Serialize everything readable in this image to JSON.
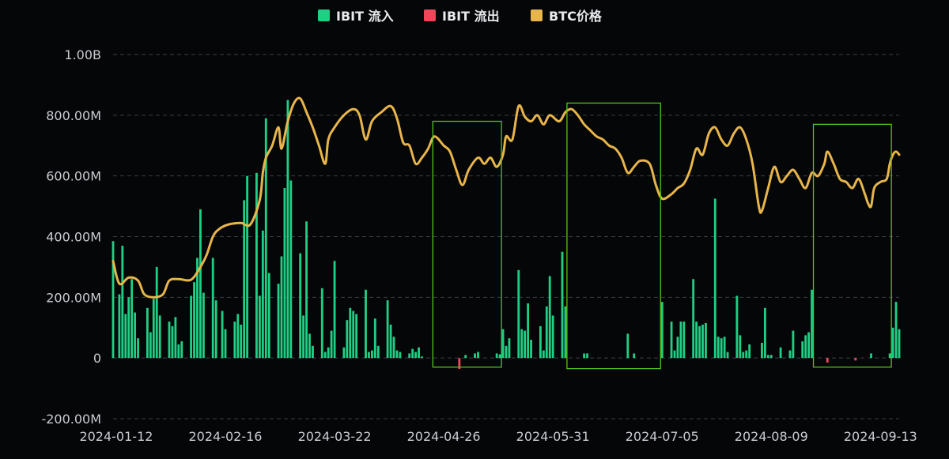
{
  "legend": {
    "inflow": "IBIT 流入",
    "outflow": "IBIT 流出",
    "price": "BTC价格"
  },
  "colors": {
    "inflow": "#1fcf84",
    "outflow": "#f0465a",
    "price": "#e8b54a",
    "highlight": "#52c41a",
    "grid": "#3a3f46",
    "text": "#c9ccd1",
    "background": "#040608"
  },
  "chart_data": {
    "type": "bar",
    "series_types": {
      "inflow": "bar",
      "outflow": "bar",
      "price": "line"
    },
    "ylim": [
      -200000000,
      1000000000
    ],
    "yticks": [
      {
        "value": 1000000000,
        "label": "1.00B"
      },
      {
        "value": 800000000,
        "label": "800.00M"
      },
      {
        "value": 600000000,
        "label": "600.00M"
      },
      {
        "value": 400000000,
        "label": "400.00M"
      },
      {
        "value": 200000000,
        "label": "200.00M"
      },
      {
        "value": 0,
        "label": "0"
      },
      {
        "value": -200000000,
        "label": "-200.00M"
      }
    ],
    "xlim": [
      "2024-01-11",
      "2024-09-19"
    ],
    "xticks": [
      "2024-01-12",
      "2024-02-16",
      "2024-03-22",
      "2024-04-26",
      "2024-05-31",
      "2024-07-05",
      "2024-08-09",
      "2024-09-13"
    ],
    "grid": true,
    "legend_position": "top-center",
    "flows": [
      [
        "2024-01-11",
        385000000
      ],
      [
        "2024-01-12",
        0
      ],
      [
        "2024-01-13",
        210000000
      ],
      [
        "2024-01-14",
        370000000
      ],
      [
        "2024-01-15",
        145000000
      ],
      [
        "2024-01-16",
        200000000
      ],
      [
        "2024-01-17",
        260000000
      ],
      [
        "2024-01-18",
        150000000
      ],
      [
        "2024-01-19",
        65000000
      ],
      [
        "2024-01-22",
        165000000
      ],
      [
        "2024-01-23",
        85000000
      ],
      [
        "2024-01-24",
        195000000
      ],
      [
        "2024-01-25",
        300000000
      ],
      [
        "2024-01-26",
        140000000
      ],
      [
        "2024-01-29",
        120000000
      ],
      [
        "2024-01-30",
        105000000
      ],
      [
        "2024-01-31",
        135000000
      ],
      [
        "2024-02-01",
        45000000
      ],
      [
        "2024-02-02",
        55000000
      ],
      [
        "2024-02-05",
        205000000
      ],
      [
        "2024-02-06",
        250000000
      ],
      [
        "2024-02-07",
        330000000
      ],
      [
        "2024-02-08",
        490000000
      ],
      [
        "2024-02-09",
        215000000
      ],
      [
        "2024-02-12",
        330000000
      ],
      [
        "2024-02-13",
        190000000
      ],
      [
        "2024-02-14",
        0
      ],
      [
        "2024-02-15",
        155000000
      ],
      [
        "2024-02-16",
        95000000
      ],
      [
        "2024-02-19",
        120000000
      ],
      [
        "2024-02-20",
        145000000
      ],
      [
        "2024-02-21",
        110000000
      ],
      [
        "2024-02-22",
        520000000
      ],
      [
        "2024-02-23",
        600000000
      ],
      [
        "2024-02-26",
        610000000
      ],
      [
        "2024-02-27",
        205000000
      ],
      [
        "2024-02-28",
        420000000
      ],
      [
        "2024-02-29",
        790000000
      ],
      [
        "2024-03-01",
        280000000
      ],
      [
        "2024-03-04",
        245000000
      ],
      [
        "2024-03-05",
        335000000
      ],
      [
        "2024-03-06",
        560000000
      ],
      [
        "2024-03-07",
        850000000
      ],
      [
        "2024-03-08",
        585000000
      ],
      [
        "2024-03-11",
        345000000
      ],
      [
        "2024-03-12",
        140000000
      ],
      [
        "2024-03-13",
        450000000
      ],
      [
        "2024-03-14",
        80000000
      ],
      [
        "2024-03-15",
        40000000
      ],
      [
        "2024-03-18",
        230000000
      ],
      [
        "2024-03-19",
        20000000
      ],
      [
        "2024-03-20",
        35000000
      ],
      [
        "2024-03-21",
        90000000
      ],
      [
        "2024-03-22",
        320000000
      ],
      [
        "2024-03-25",
        35000000
      ],
      [
        "2024-03-26",
        125000000
      ],
      [
        "2024-03-27",
        165000000
      ],
      [
        "2024-03-28",
        155000000
      ],
      [
        "2024-03-29",
        145000000
      ],
      [
        "2024-04-01",
        225000000
      ],
      [
        "2024-04-02",
        20000000
      ],
      [
        "2024-04-03",
        25000000
      ],
      [
        "2024-04-04",
        130000000
      ],
      [
        "2024-04-05",
        40000000
      ],
      [
        "2024-04-08",
        190000000
      ],
      [
        "2024-04-09",
        110000000
      ],
      [
        "2024-04-10",
        70000000
      ],
      [
        "2024-04-11",
        25000000
      ],
      [
        "2024-04-12",
        20000000
      ],
      [
        "2024-04-15",
        15000000
      ],
      [
        "2024-04-16",
        30000000
      ],
      [
        "2024-04-17",
        20000000
      ],
      [
        "2024-04-18",
        35000000
      ],
      [
        "2024-04-19",
        5000000
      ],
      [
        "2024-04-22",
        0
      ],
      [
        "2024-04-23",
        0
      ],
      [
        "2024-04-24",
        0
      ],
      [
        "2024-04-25",
        0
      ],
      [
        "2024-04-26",
        0
      ],
      [
        "2024-04-29",
        0
      ],
      [
        "2024-04-30",
        0
      ],
      [
        "2024-05-01",
        -36000000
      ],
      [
        "2024-05-02",
        0
      ],
      [
        "2024-05-03",
        10000000
      ],
      [
        "2024-05-06",
        15000000
      ],
      [
        "2024-05-07",
        20000000
      ],
      [
        "2024-05-08",
        0
      ],
      [
        "2024-05-09",
        0
      ],
      [
        "2024-05-10",
        0
      ],
      [
        "2024-05-13",
        15000000
      ],
      [
        "2024-05-14",
        12000000
      ],
      [
        "2024-05-15",
        95000000
      ],
      [
        "2024-05-16",
        40000000
      ],
      [
        "2024-05-17",
        65000000
      ],
      [
        "2024-05-20",
        290000000
      ],
      [
        "2024-05-21",
        95000000
      ],
      [
        "2024-05-22",
        90000000
      ],
      [
        "2024-05-23",
        180000000
      ],
      [
        "2024-05-24",
        60000000
      ],
      [
        "2024-05-27",
        105000000
      ],
      [
        "2024-05-28",
        25000000
      ],
      [
        "2024-05-29",
        170000000
      ],
      [
        "2024-05-30",
        270000000
      ],
      [
        "2024-05-31",
        140000000
      ],
      [
        "2024-06-03",
        350000000
      ],
      [
        "2024-06-04",
        170000000
      ],
      [
        "2024-06-05",
        0
      ],
      [
        "2024-06-06",
        0
      ],
      [
        "2024-06-07",
        0
      ],
      [
        "2024-06-10",
        15000000
      ],
      [
        "2024-06-11",
        15000000
      ],
      [
        "2024-06-12",
        0
      ],
      [
        "2024-06-13",
        0
      ],
      [
        "2024-06-14",
        0
      ],
      [
        "2024-06-17",
        0
      ],
      [
        "2024-06-18",
        0
      ],
      [
        "2024-06-19",
        0
      ],
      [
        "2024-06-20",
        0
      ],
      [
        "2024-06-21",
        0
      ],
      [
        "2024-06-24",
        80000000
      ],
      [
        "2024-06-25",
        0
      ],
      [
        "2024-06-26",
        15000000
      ],
      [
        "2024-06-27",
        0
      ],
      [
        "2024-06-28",
        0
      ],
      [
        "2024-07-01",
        0
      ],
      [
        "2024-07-02",
        0
      ],
      [
        "2024-07-03",
        0
      ],
      [
        "2024-07-04",
        0
      ],
      [
        "2024-07-05",
        185000000
      ],
      [
        "2024-07-08",
        120000000
      ],
      [
        "2024-07-09",
        25000000
      ],
      [
        "2024-07-10",
        70000000
      ],
      [
        "2024-07-11",
        120000000
      ],
      [
        "2024-07-12",
        120000000
      ],
      [
        "2024-07-15",
        260000000
      ],
      [
        "2024-07-16",
        120000000
      ],
      [
        "2024-07-17",
        105000000
      ],
      [
        "2024-07-18",
        110000000
      ],
      [
        "2024-07-19",
        115000000
      ],
      [
        "2024-07-22",
        525000000
      ],
      [
        "2024-07-23",
        70000000
      ],
      [
        "2024-07-24",
        65000000
      ],
      [
        "2024-07-25",
        70000000
      ],
      [
        "2024-07-26",
        20000000
      ],
      [
        "2024-07-29",
        205000000
      ],
      [
        "2024-07-30",
        75000000
      ],
      [
        "2024-07-31",
        20000000
      ],
      [
        "2024-08-01",
        25000000
      ],
      [
        "2024-08-02",
        45000000
      ],
      [
        "2024-08-05",
        0
      ],
      [
        "2024-08-06",
        50000000
      ],
      [
        "2024-08-07",
        165000000
      ],
      [
        "2024-08-08",
        10000000
      ],
      [
        "2024-08-09",
        10000000
      ],
      [
        "2024-08-12",
        35000000
      ],
      [
        "2024-08-13",
        0
      ],
      [
        "2024-08-14",
        0
      ],
      [
        "2024-08-15",
        25000000
      ],
      [
        "2024-08-16",
        90000000
      ],
      [
        "2024-08-19",
        55000000
      ],
      [
        "2024-08-20",
        75000000
      ],
      [
        "2024-08-21",
        85000000
      ],
      [
        "2024-08-22",
        225000000
      ],
      [
        "2024-08-23",
        0
      ],
      [
        "2024-08-26",
        0
      ],
      [
        "2024-08-27",
        -15000000
      ],
      [
        "2024-08-28",
        0
      ],
      [
        "2024-08-29",
        0
      ],
      [
        "2024-08-30",
        0
      ],
      [
        "2024-09-02",
        0
      ],
      [
        "2024-09-03",
        0
      ],
      [
        "2024-09-04",
        0
      ],
      [
        "2024-09-05",
        -8000000
      ],
      [
        "2024-09-06",
        0
      ],
      [
        "2024-09-09",
        0
      ],
      [
        "2024-09-10",
        15000000
      ],
      [
        "2024-09-11",
        0
      ],
      [
        "2024-09-12",
        0
      ],
      [
        "2024-09-13",
        0
      ],
      [
        "2024-09-16",
        15000000
      ],
      [
        "2024-09-17",
        100000000
      ],
      [
        "2024-09-18",
        185000000
      ],
      [
        "2024-09-19",
        95000000
      ]
    ],
    "price": [
      [
        "2024-01-11",
        320000000
      ],
      [
        "2024-01-13",
        245000000
      ],
      [
        "2024-01-16",
        265000000
      ],
      [
        "2024-01-19",
        255000000
      ],
      [
        "2024-01-21",
        210000000
      ],
      [
        "2024-01-24",
        200000000
      ],
      [
        "2024-01-27",
        210000000
      ],
      [
        "2024-01-29",
        255000000
      ],
      [
        "2024-02-01",
        260000000
      ],
      [
        "2024-02-05",
        258000000
      ],
      [
        "2024-02-08",
        300000000
      ],
      [
        "2024-02-10",
        340000000
      ],
      [
        "2024-02-12",
        400000000
      ],
      [
        "2024-02-14",
        425000000
      ],
      [
        "2024-02-17",
        440000000
      ],
      [
        "2024-02-21",
        445000000
      ],
      [
        "2024-02-24",
        440000000
      ],
      [
        "2024-02-27",
        520000000
      ],
      [
        "2024-02-28",
        610000000
      ],
      [
        "2024-02-29",
        660000000
      ],
      [
        "2024-03-02",
        700000000
      ],
      [
        "2024-03-04",
        760000000
      ],
      [
        "2024-03-05",
        690000000
      ],
      [
        "2024-03-07",
        780000000
      ],
      [
        "2024-03-09",
        840000000
      ],
      [
        "2024-03-11",
        855000000
      ],
      [
        "2024-03-13",
        810000000
      ],
      [
        "2024-03-15",
        760000000
      ],
      [
        "2024-03-17",
        700000000
      ],
      [
        "2024-03-19",
        640000000
      ],
      [
        "2024-03-20",
        720000000
      ],
      [
        "2024-03-22",
        760000000
      ],
      [
        "2024-03-25",
        800000000
      ],
      [
        "2024-03-28",
        820000000
      ],
      [
        "2024-03-30",
        800000000
      ],
      [
        "2024-04-01",
        720000000
      ],
      [
        "2024-04-03",
        780000000
      ],
      [
        "2024-04-06",
        810000000
      ],
      [
        "2024-04-09",
        830000000
      ],
      [
        "2024-04-11",
        790000000
      ],
      [
        "2024-04-13",
        710000000
      ],
      [
        "2024-04-15",
        700000000
      ],
      [
        "2024-04-17",
        640000000
      ],
      [
        "2024-04-19",
        660000000
      ],
      [
        "2024-04-21",
        690000000
      ],
      [
        "2024-04-23",
        730000000
      ],
      [
        "2024-04-26",
        700000000
      ],
      [
        "2024-04-28",
        680000000
      ],
      [
        "2024-04-30",
        620000000
      ],
      [
        "2024-05-02",
        570000000
      ],
      [
        "2024-05-04",
        620000000
      ],
      [
        "2024-05-07",
        660000000
      ],
      [
        "2024-05-09",
        640000000
      ],
      [
        "2024-05-11",
        660000000
      ],
      [
        "2024-05-13",
        630000000
      ],
      [
        "2024-05-15",
        670000000
      ],
      [
        "2024-05-16",
        730000000
      ],
      [
        "2024-05-18",
        720000000
      ],
      [
        "2024-05-20",
        830000000
      ],
      [
        "2024-05-22",
        795000000
      ],
      [
        "2024-05-24",
        780000000
      ],
      [
        "2024-05-26",
        800000000
      ],
      [
        "2024-05-28",
        770000000
      ],
      [
        "2024-05-30",
        800000000
      ],
      [
        "2024-06-02",
        780000000
      ],
      [
        "2024-06-04",
        810000000
      ],
      [
        "2024-06-06",
        820000000
      ],
      [
        "2024-06-08",
        800000000
      ],
      [
        "2024-06-10",
        770000000
      ],
      [
        "2024-06-12",
        750000000
      ],
      [
        "2024-06-14",
        730000000
      ],
      [
        "2024-06-16",
        720000000
      ],
      [
        "2024-06-18",
        700000000
      ],
      [
        "2024-06-20",
        690000000
      ],
      [
        "2024-06-22",
        660000000
      ],
      [
        "2024-06-24",
        610000000
      ],
      [
        "2024-06-26",
        630000000
      ],
      [
        "2024-06-28",
        650000000
      ],
      [
        "2024-07-01",
        640000000
      ],
      [
        "2024-07-03",
        570000000
      ],
      [
        "2024-07-05",
        525000000
      ],
      [
        "2024-07-08",
        540000000
      ],
      [
        "2024-07-10",
        560000000
      ],
      [
        "2024-07-12",
        575000000
      ],
      [
        "2024-07-14",
        620000000
      ],
      [
        "2024-07-16",
        690000000
      ],
      [
        "2024-07-18",
        670000000
      ],
      [
        "2024-07-20",
        740000000
      ],
      [
        "2024-07-22",
        760000000
      ],
      [
        "2024-07-24",
        720000000
      ],
      [
        "2024-07-26",
        700000000
      ],
      [
        "2024-07-28",
        740000000
      ],
      [
        "2024-07-30",
        760000000
      ],
      [
        "2024-08-01",
        720000000
      ],
      [
        "2024-08-03",
        640000000
      ],
      [
        "2024-08-05",
        500000000
      ],
      [
        "2024-08-06",
        485000000
      ],
      [
        "2024-08-08",
        560000000
      ],
      [
        "2024-08-10",
        630000000
      ],
      [
        "2024-08-12",
        580000000
      ],
      [
        "2024-08-14",
        600000000
      ],
      [
        "2024-08-16",
        620000000
      ],
      [
        "2024-08-18",
        590000000
      ],
      [
        "2024-08-20",
        560000000
      ],
      [
        "2024-08-22",
        610000000
      ],
      [
        "2024-08-24",
        600000000
      ],
      [
        "2024-08-26",
        640000000
      ],
      [
        "2024-08-27",
        680000000
      ],
      [
        "2024-08-29",
        640000000
      ],
      [
        "2024-08-31",
        590000000
      ],
      [
        "2024-09-02",
        580000000
      ],
      [
        "2024-09-04",
        560000000
      ],
      [
        "2024-09-06",
        590000000
      ],
      [
        "2024-09-08",
        540000000
      ],
      [
        "2024-09-09",
        510000000
      ],
      [
        "2024-09-10",
        500000000
      ],
      [
        "2024-09-11",
        560000000
      ],
      [
        "2024-09-13",
        580000000
      ],
      [
        "2024-09-15",
        590000000
      ],
      [
        "2024-09-16",
        640000000
      ],
      [
        "2024-09-17",
        670000000
      ],
      [
        "2024-09-18",
        680000000
      ],
      [
        "2024-09-19",
        670000000
      ]
    ],
    "highlight_ranges": [
      {
        "start": "2024-04-23",
        "end": "2024-05-14",
        "ymin": -30000000,
        "ymax": 780000000
      },
      {
        "start": "2024-06-05",
        "end": "2024-07-04",
        "ymin": -35000000,
        "ymax": 840000000
      },
      {
        "start": "2024-08-23",
        "end": "2024-09-16",
        "ymin": -30000000,
        "ymax": 770000000
      }
    ]
  }
}
